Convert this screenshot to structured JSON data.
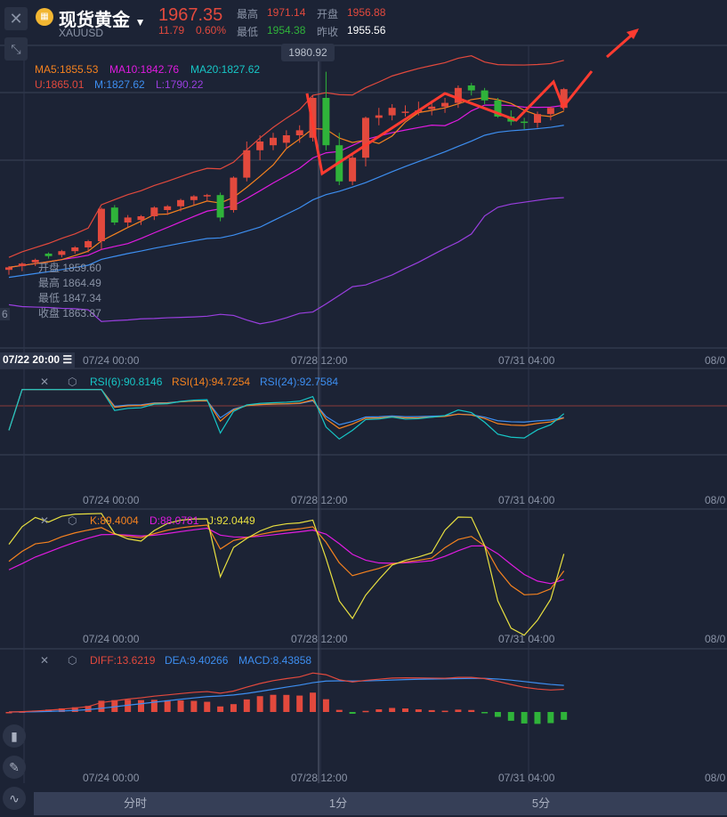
{
  "header": {
    "name": "现货黄金",
    "symbol": "XAUUSD",
    "price": "1967.35",
    "change": "11.79",
    "change_pct": "0.60%",
    "high_label": "最高",
    "high": "1971.14",
    "open_label": "开盘",
    "open": "1956.88",
    "low_label": "最低",
    "low": "1954.38",
    "prev_close_label": "昨收",
    "prev_close": "1955.56"
  },
  "tooltip_price": "1980.92",
  "ma": {
    "ma5": "MA5:1855.53",
    "ma10": "MA10:1842.76",
    "ma20": "MA20:1827.62",
    "u": "U:1865.01",
    "m": "M:1827.62",
    "l": "L:1790.22"
  },
  "crosshair_info": {
    "open_label": "开盘",
    "open": "1859.60",
    "high_label": "最高",
    "high": "1864.49",
    "low_label": "最低",
    "low": "1847.34",
    "close_label": "收盘",
    "close": "1863.87"
  },
  "crosshair_time": "07/22 20:00",
  "left_axis_fragment": "6",
  "x_labels": [
    "07/24 00:00",
    "07/28 12:00",
    "07/31 04:00",
    "08/0"
  ],
  "rsi": {
    "r6": "RSI(6):90.8146",
    "r14": "RSI(14):94.7254",
    "r24": "RSI(24):92.7584"
  },
  "kdj": {
    "k": "K:89.4004",
    "d": "D:88.0781",
    "j": "J:92.0449"
  },
  "macd": {
    "diff": "DIFF:13.6219",
    "dea": "DEA:9.40266",
    "macd": "MACD:8.43858"
  },
  "tabs": [
    "分时",
    "1分",
    "5分"
  ],
  "colors": {
    "up": "#e2493d",
    "down": "#2fb33a",
    "ma5": "#f5821f",
    "ma10": "#e01be0",
    "ma20": "#17c6c6",
    "boll_u": "#e2493d",
    "boll_m": "#3d8ef0",
    "boll_l": "#9a3fe0",
    "bg": "#1c2335"
  },
  "chart_data": {
    "type": "candlestick",
    "candles": [
      [
        1822,
        1825,
        1818,
        1824
      ],
      [
        1825,
        1828,
        1821,
        1827
      ],
      [
        1828,
        1831,
        1825,
        1830
      ],
      [
        1835,
        1836,
        1831,
        1833
      ],
      [
        1834,
        1838,
        1832,
        1837
      ],
      [
        1837,
        1841,
        1835,
        1840
      ],
      [
        1840,
        1846,
        1836,
        1845
      ],
      [
        1845,
        1872,
        1838,
        1871
      ],
      [
        1872,
        1874,
        1858,
        1860
      ],
      [
        1860,
        1866,
        1856,
        1864
      ],
      [
        1862,
        1866,
        1858,
        1865
      ],
      [
        1865,
        1873,
        1862,
        1872
      ],
      [
        1870,
        1874,
        1866,
        1873
      ],
      [
        1873,
        1879,
        1869,
        1878
      ],
      [
        1878,
        1882,
        1874,
        1881
      ],
      [
        1881,
        1883,
        1877,
        1882
      ],
      [
        1882,
        1884,
        1861,
        1864
      ],
      [
        1870,
        1897,
        1868,
        1896
      ],
      [
        1896,
        1925,
        1893,
        1918
      ],
      [
        1918,
        1930,
        1910,
        1925
      ],
      [
        1922,
        1932,
        1918,
        1928
      ],
      [
        1924,
        1934,
        1919,
        1930
      ],
      [
        1930,
        1938,
        1924,
        1934
      ],
      [
        1928,
        1962,
        1925,
        1960
      ],
      [
        1960,
        1981,
        1918,
        1922
      ],
      [
        1922,
        1932,
        1890,
        1893
      ],
      [
        1893,
        1914,
        1890,
        1912
      ],
      [
        1912,
        1945,
        1905,
        1944
      ],
      [
        1944,
        1952,
        1938,
        1946
      ],
      [
        1946,
        1955,
        1942,
        1952
      ],
      [
        1948,
        1954,
        1945,
        1949
      ],
      [
        1949,
        1957,
        1946,
        1950
      ],
      [
        1951,
        1958,
        1946,
        1953
      ],
      [
        1953,
        1960,
        1948,
        1956
      ],
      [
        1956,
        1970,
        1952,
        1968
      ],
      [
        1970,
        1972,
        1962,
        1966
      ],
      [
        1966,
        1968,
        1955,
        1958
      ],
      [
        1958,
        1960,
        1944,
        1945
      ],
      [
        1945,
        1950,
        1938,
        1941
      ],
      [
        1941,
        1944,
        1935,
        1940
      ],
      [
        1940,
        1949,
        1936,
        1947
      ],
      [
        1947,
        1953,
        1942,
        1952
      ],
      [
        1952,
        1968,
        1950,
        1967
      ]
    ]
  }
}
